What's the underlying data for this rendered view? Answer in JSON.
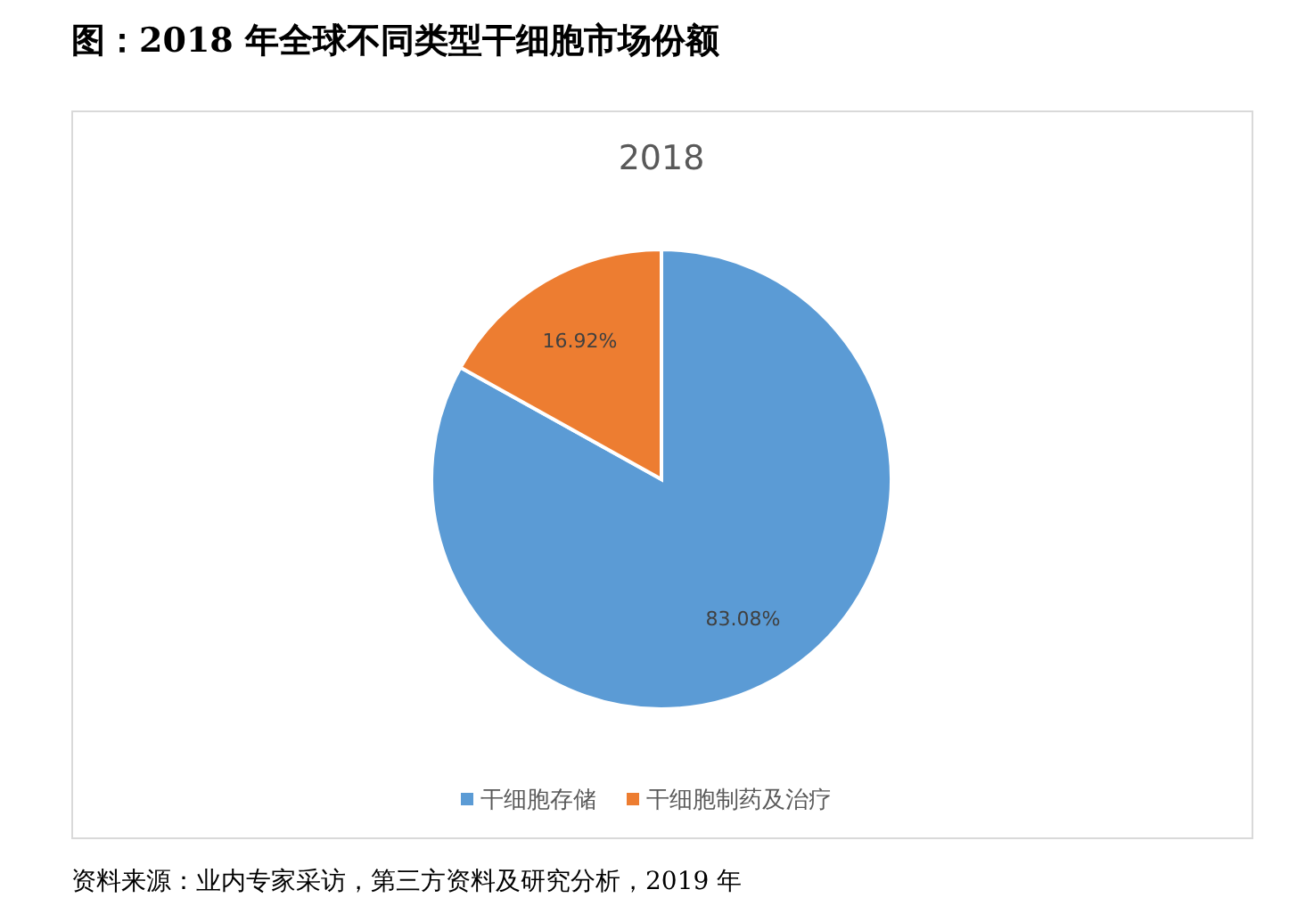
{
  "chart_data": {
    "type": "pie",
    "title": "图：2018 年全球不同类型干细胞市场份额",
    "subtitle": "2018",
    "categories": [
      "干细胞存储",
      "干细胞制药及治疗"
    ],
    "values": [
      83.08,
      16.92
    ],
    "value_labels": [
      "83.08%",
      "16.92%"
    ],
    "colors": [
      "#5b9bd5",
      "#ed7d31"
    ],
    "legend": "bottom",
    "annotations": [
      "资料来源：业内专家采访，第三方资料及研究分析，2019 年"
    ]
  }
}
